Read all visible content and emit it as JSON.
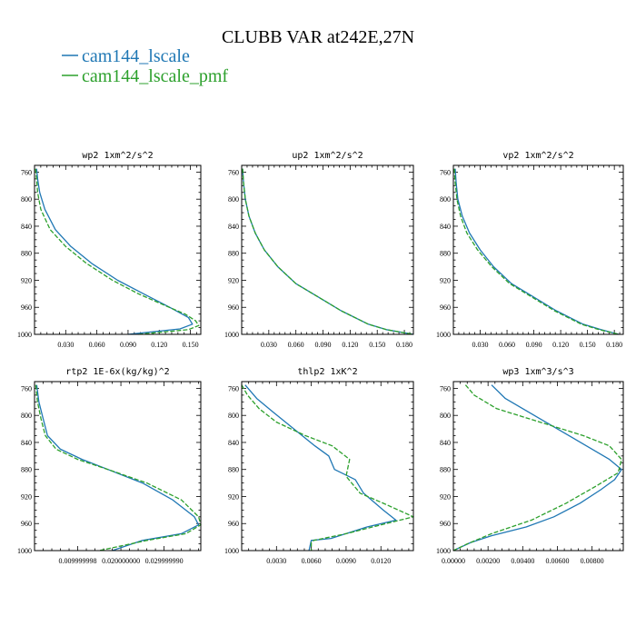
{
  "title": "CLUBB VAR at242E,27N",
  "legend": [
    {
      "label": "cam144_lscale",
      "color": "#1f77b4",
      "dash": "solid"
    },
    {
      "label": "cam144_lscale_pmf",
      "color": "#2ca02c",
      "dash": "dashed"
    }
  ],
  "chart_data": [
    {
      "type": "line",
      "title": "wp2  1xm^2/s^2",
      "xlim": [
        0,
        0.16
      ],
      "ylim": [
        1000,
        750
      ],
      "xticks": [
        0.03,
        0.06,
        0.09,
        0.12,
        0.15
      ],
      "xtick_labels": [
        "0.030",
        "0.060",
        "0.090",
        "0.120",
        "0.150"
      ],
      "yticks": [
        760,
        800,
        840,
        880,
        920,
        960,
        1000
      ],
      "ytick_labels": [
        "760",
        "800",
        "840",
        "880",
        "920",
        "960",
        "1000"
      ],
      "series": [
        {
          "name": "cam144_lscale",
          "color": "#1f77b4",
          "dash": "solid",
          "x": [
            0.002,
            0.003,
            0.005,
            0.01,
            0.02,
            0.035,
            0.055,
            0.08,
            0.105,
            0.13,
            0.148,
            0.152,
            0.14,
            0.09
          ],
          "y": [
            755,
            770,
            790,
            815,
            845,
            870,
            895,
            920,
            940,
            960,
            975,
            985,
            992,
            1000
          ]
        },
        {
          "name": "cam144_lscale_pmf",
          "color": "#2ca02c",
          "dash": "dashed",
          "x": [
            0.001,
            0.002,
            0.003,
            0.006,
            0.015,
            0.03,
            0.05,
            0.075,
            0.1,
            0.125,
            0.145,
            0.155,
            0.158,
            0.148,
            0.1
          ],
          "y": [
            755,
            770,
            790,
            815,
            845,
            870,
            895,
            920,
            940,
            957,
            970,
            980,
            987,
            993,
            1000
          ]
        }
      ]
    },
    {
      "type": "line",
      "title": "up2  1xm^2/s^2",
      "xlim": [
        0,
        0.19
      ],
      "ylim": [
        1000,
        750
      ],
      "xticks": [
        0.03,
        0.06,
        0.09,
        0.12,
        0.15,
        0.18
      ],
      "xtick_labels": [
        "0.030",
        "0.060",
        "0.090",
        "0.120",
        "0.150",
        "0.180"
      ],
      "yticks": [
        760,
        800,
        840,
        880,
        920,
        960,
        1000
      ],
      "ytick_labels": [
        "760",
        "800",
        "840",
        "880",
        "920",
        "960",
        "1000"
      ],
      "series": [
        {
          "name": "cam144_lscale",
          "color": "#1f77b4",
          "dash": "solid",
          "x": [
            0.001,
            0.002,
            0.004,
            0.008,
            0.015,
            0.025,
            0.04,
            0.06,
            0.085,
            0.11,
            0.14,
            0.16,
            0.19
          ],
          "y": [
            755,
            775,
            800,
            825,
            850,
            875,
            900,
            925,
            945,
            965,
            985,
            993,
            1000
          ]
        },
        {
          "name": "cam144_lscale_pmf",
          "color": "#2ca02c",
          "dash": "dashed",
          "x": [
            0.001,
            0.002,
            0.004,
            0.008,
            0.015,
            0.025,
            0.04,
            0.06,
            0.085,
            0.11,
            0.14,
            0.16,
            0.19
          ],
          "y": [
            755,
            775,
            800,
            825,
            850,
            875,
            900,
            925,
            945,
            965,
            985,
            993,
            1000
          ]
        }
      ]
    },
    {
      "type": "line",
      "title": "vp2  1xm^2/s^2",
      "xlim": [
        0,
        0.19
      ],
      "ylim": [
        1000,
        750
      ],
      "xticks": [
        0.03,
        0.06,
        0.09,
        0.12,
        0.15,
        0.18
      ],
      "xtick_labels": [
        "0.030",
        "0.060",
        "0.090",
        "0.120",
        "0.150",
        "0.180"
      ],
      "yticks": [
        760,
        800,
        840,
        880,
        920,
        960,
        1000
      ],
      "ytick_labels": [
        "760",
        "800",
        "840",
        "880",
        "920",
        "960",
        "1000"
      ],
      "series": [
        {
          "name": "cam144_lscale",
          "color": "#1f77b4",
          "dash": "solid",
          "x": [
            0.002,
            0.003,
            0.005,
            0.01,
            0.018,
            0.03,
            0.045,
            0.065,
            0.09,
            0.115,
            0.145,
            0.165,
            0.185
          ],
          "y": [
            755,
            775,
            800,
            825,
            850,
            875,
            900,
            925,
            945,
            965,
            985,
            993,
            1000
          ]
        },
        {
          "name": "cam144_lscale_pmf",
          "color": "#2ca02c",
          "dash": "dashed",
          "x": [
            0.001,
            0.002,
            0.004,
            0.008,
            0.015,
            0.027,
            0.043,
            0.063,
            0.088,
            0.113,
            0.143,
            0.163,
            0.185
          ],
          "y": [
            755,
            775,
            800,
            825,
            850,
            875,
            900,
            925,
            945,
            965,
            985,
            993,
            1000
          ]
        }
      ]
    },
    {
      "type": "line",
      "title": "rtp2  1E-6x(kg/kg)^2",
      "xlim": [
        0,
        0.0385
      ],
      "ylim": [
        1000,
        750
      ],
      "xticks": [
        0.01,
        0.02,
        0.03
      ],
      "xtick_labels": [
        "0.009999998",
        "0.020000000",
        "0.029999990"
      ],
      "yticks": [
        760,
        800,
        840,
        880,
        920,
        960,
        1000
      ],
      "ytick_labels": [
        "760",
        "800",
        "840",
        "880",
        "920",
        "960",
        "1000"
      ],
      "series": [
        {
          "name": "cam144_lscale",
          "color": "#1f77b4",
          "dash": "solid",
          "x": [
            0.0005,
            0.001,
            0.002,
            0.003,
            0.006,
            0.011,
            0.017,
            0.025,
            0.032,
            0.037,
            0.038,
            0.034,
            0.025,
            0.018
          ],
          "y": [
            755,
            780,
            805,
            830,
            850,
            865,
            880,
            900,
            925,
            950,
            962,
            975,
            985,
            1000
          ]
        },
        {
          "name": "cam144_lscale_pmf",
          "color": "#2ca02c",
          "dash": "dashed",
          "x": [
            0.0003,
            0.0007,
            0.0015,
            0.0025,
            0.005,
            0.01,
            0.017,
            0.026,
            0.034,
            0.038,
            0.0385,
            0.035,
            0.026,
            0.015
          ],
          "y": [
            755,
            780,
            805,
            830,
            850,
            865,
            880,
            900,
            925,
            950,
            962,
            975,
            985,
            1000
          ]
        }
      ]
    },
    {
      "type": "line",
      "title": "thlp2  1xK^2",
      "xlim": [
        0,
        0.0148
      ],
      "ylim": [
        1000,
        750
      ],
      "xticks": [
        0.003,
        0.006,
        0.009,
        0.012
      ],
      "xtick_labels": [
        "0.0030",
        "0.0060",
        "0.0090",
        "0.0120"
      ],
      "yticks": [
        760,
        800,
        840,
        880,
        920,
        960,
        1000
      ],
      "ytick_labels": [
        "760",
        "800",
        "840",
        "880",
        "920",
        "960",
        "1000"
      ],
      "series": [
        {
          "name": "cam144_lscale",
          "color": "#1f77b4",
          "dash": "solid",
          "x": [
            0.0003,
            0.0013,
            0.0027,
            0.0045,
            0.0063,
            0.0075,
            0.008,
            0.0098,
            0.0105,
            0.0122,
            0.0133,
            0.0108,
            0.0077,
            0.006,
            0.0058
          ],
          "y": [
            755,
            775,
            795,
            820,
            845,
            860,
            880,
            895,
            915,
            940,
            955,
            965,
            982,
            985,
            1000
          ]
        },
        {
          "name": "cam144_lscale_pmf",
          "color": "#2ca02c",
          "dash": "dashed",
          "x": [
            0.0,
            0.0005,
            0.0015,
            0.003,
            0.0055,
            0.0078,
            0.0093,
            0.009,
            0.0102,
            0.0122,
            0.0148,
            0.012,
            0.009,
            0.0062,
            0.006,
            0.006
          ],
          "y": [
            755,
            770,
            790,
            810,
            830,
            845,
            865,
            890,
            915,
            930,
            950,
            962,
            975,
            985,
            988,
            1000
          ]
        }
      ]
    },
    {
      "type": "line",
      "title": "wp3  1xm^3/s^3",
      "xlim": [
        0,
        0.0098
      ],
      "ylim": [
        1000,
        750
      ],
      "xticks": [
        0.0,
        0.002,
        0.004,
        0.006,
        0.008
      ],
      "xtick_labels": [
        "0.00000",
        "0.00200",
        "0.00400",
        "0.00600",
        "0.00800"
      ],
      "yticks": [
        760,
        800,
        840,
        880,
        920,
        960,
        1000
      ],
      "ytick_labels": [
        "760",
        "800",
        "840",
        "880",
        "920",
        "960",
        "1000"
      ],
      "series": [
        {
          "name": "cam144_lscale",
          "color": "#1f77b4",
          "dash": "solid",
          "x": [
            0.0022,
            0.003,
            0.005,
            0.007,
            0.009,
            0.0097,
            0.0093,
            0.0085,
            0.0073,
            0.0058,
            0.0042,
            0.0022,
            0.001,
            0.0
          ],
          "y": [
            755,
            775,
            805,
            835,
            865,
            880,
            895,
            910,
            930,
            950,
            965,
            978,
            988,
            1000
          ]
        },
        {
          "name": "cam144_lscale_pmf",
          "color": "#2ca02c",
          "dash": "dashed",
          "x": [
            0.0007,
            0.0012,
            0.0025,
            0.005,
            0.0075,
            0.009,
            0.0097,
            0.0095,
            0.0082,
            0.0065,
            0.0045,
            0.0022,
            0.0008,
            0.0
          ],
          "y": [
            755,
            770,
            790,
            810,
            830,
            845,
            865,
            885,
            905,
            930,
            955,
            975,
            990,
            1000
          ]
        }
      ]
    }
  ]
}
